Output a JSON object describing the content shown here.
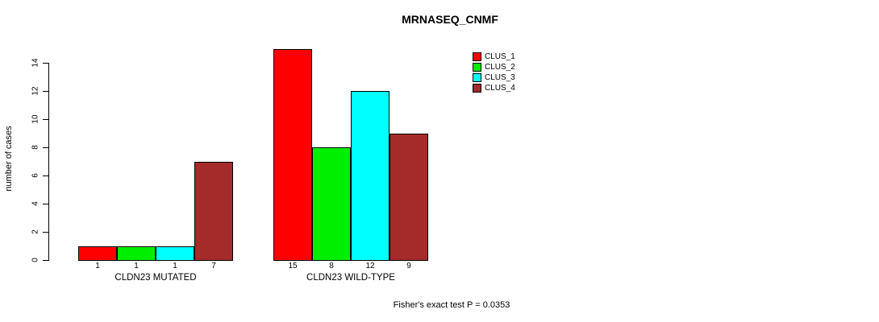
{
  "chart_data": {
    "type": "bar",
    "title": "MRNASEQ_CNMF",
    "ylabel": "number of cases",
    "xlabel": "",
    "ylim": [
      0,
      15
    ],
    "yticks": [
      0,
      2,
      4,
      6,
      8,
      10,
      12,
      14
    ],
    "grid": false,
    "legend_position": "top-right",
    "series": [
      {
        "name": "CLUS_1",
        "color": "#FF0000"
      },
      {
        "name": "CLUS_2",
        "color": "#00EE00"
      },
      {
        "name": "CLUS_3",
        "color": "#00FFFF"
      },
      {
        "name": "CLUS_4",
        "color": "#A52A2A"
      }
    ],
    "groups": [
      {
        "label": "CLDN23 MUTATED",
        "values": [
          1,
          1,
          1,
          7
        ]
      },
      {
        "label": "CLDN23 WILD-TYPE",
        "values": [
          15,
          8,
          12,
          9
        ]
      }
    ],
    "footnote": "Fisher's exact test P = 0.0353"
  }
}
